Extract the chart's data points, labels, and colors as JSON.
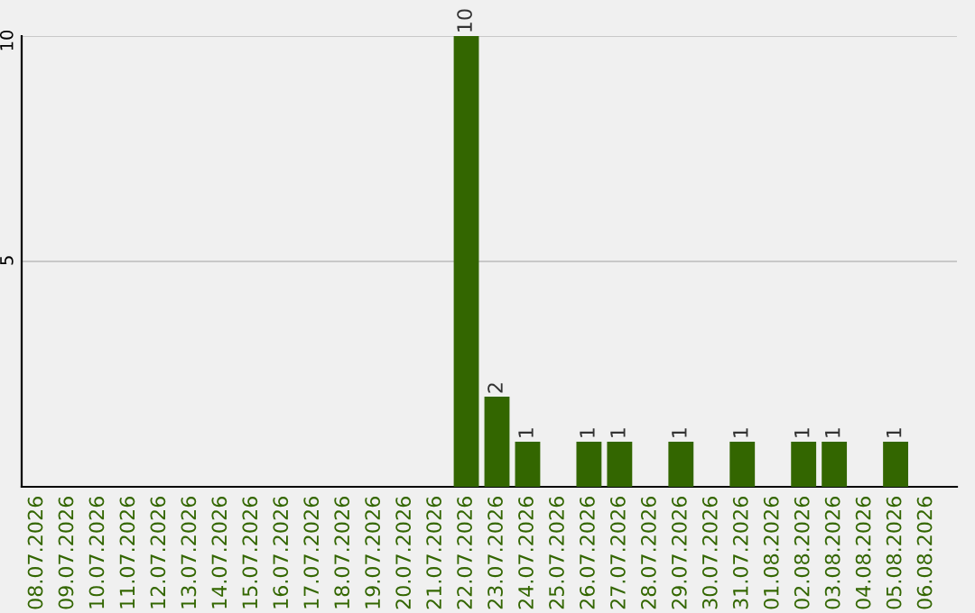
{
  "chart_data": {
    "type": "bar",
    "categories": [
      "08.07.2026",
      "09.07.2026",
      "10.07.2026",
      "11.07.2026",
      "12.07.2026",
      "13.07.2026",
      "14.07.2026",
      "15.07.2026",
      "16.07.2026",
      "17.07.2026",
      "18.07.2026",
      "19.07.2026",
      "20.07.2026",
      "21.07.2026",
      "22.07.2026",
      "23.07.2026",
      "24.07.2026",
      "25.07.2026",
      "26.07.2026",
      "27.07.2026",
      "28.07.2026",
      "29.07.2026",
      "30.07.2026",
      "31.07.2026",
      "01.08.2026",
      "02.08.2026",
      "03.08.2026",
      "04.08.2026",
      "05.08.2026",
      "06.08.2026"
    ],
    "values": [
      0,
      0,
      0,
      0,
      0,
      0,
      0,
      0,
      0,
      0,
      0,
      0,
      0,
      0,
      10,
      2,
      1,
      0,
      1,
      1,
      0,
      1,
      0,
      1,
      0,
      1,
      1,
      0,
      1,
      0
    ],
    "value_labels": [
      null,
      null,
      null,
      null,
      null,
      null,
      null,
      null,
      null,
      null,
      null,
      null,
      null,
      null,
      "10",
      "2",
      "1",
      null,
      "1",
      "1",
      null,
      "1",
      null,
      "1",
      null,
      "1",
      "1",
      null,
      "1",
      null
    ],
    "color": "#336600",
    "ylim": [
      0,
      10
    ],
    "yticks": [
      5,
      10
    ],
    "grid": "y"
  }
}
